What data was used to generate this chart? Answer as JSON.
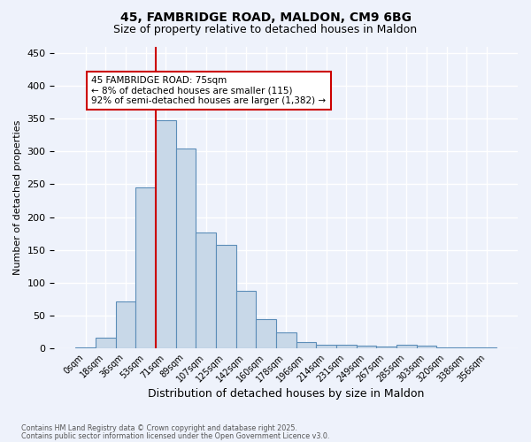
{
  "title_line1": "45, FAMBRIDGE ROAD, MALDON, CM9 6BG",
  "title_line2": "Size of property relative to detached houses in Maldon",
  "xlabel": "Distribution of detached houses by size in Maldon",
  "ylabel": "Number of detached properties",
  "bin_labels": [
    "0sqm",
    "18sqm",
    "36sqm",
    "53sqm",
    "71sqm",
    "89sqm",
    "107sqm",
    "125sqm",
    "142sqm",
    "160sqm",
    "178sqm",
    "196sqm",
    "214sqm",
    "231sqm",
    "249sqm",
    "267sqm",
    "285sqm",
    "303sqm",
    "320sqm",
    "338sqm",
    "356sqm"
  ],
  "bin_values": [
    2,
    17,
    72,
    245,
    347,
    305,
    177,
    158,
    88,
    45,
    25,
    9,
    6,
    5,
    4,
    3,
    5,
    4,
    1,
    2,
    1
  ],
  "bar_color": "#c8d8e8",
  "bar_edge_color": "#5b8db8",
  "vline_x_index": 4,
  "vline_color": "#cc0000",
  "ylim": [
    0,
    460
  ],
  "yticks": [
    0,
    50,
    100,
    150,
    200,
    250,
    300,
    350,
    400,
    450
  ],
  "annotation_text": "45 FAMBRIDGE ROAD: 75sqm\n← 8% of detached houses are smaller (115)\n92% of semi-detached houses are larger (1,382) →",
  "annotation_box_facecolor": "#ffffff",
  "annotation_box_edgecolor": "#cc0000",
  "footer_line1": "Contains HM Land Registry data © Crown copyright and database right 2025.",
  "footer_line2": "Contains public sector information licensed under the Open Government Licence v3.0.",
  "background_color": "#eef2fb",
  "grid_color": "#ffffff"
}
